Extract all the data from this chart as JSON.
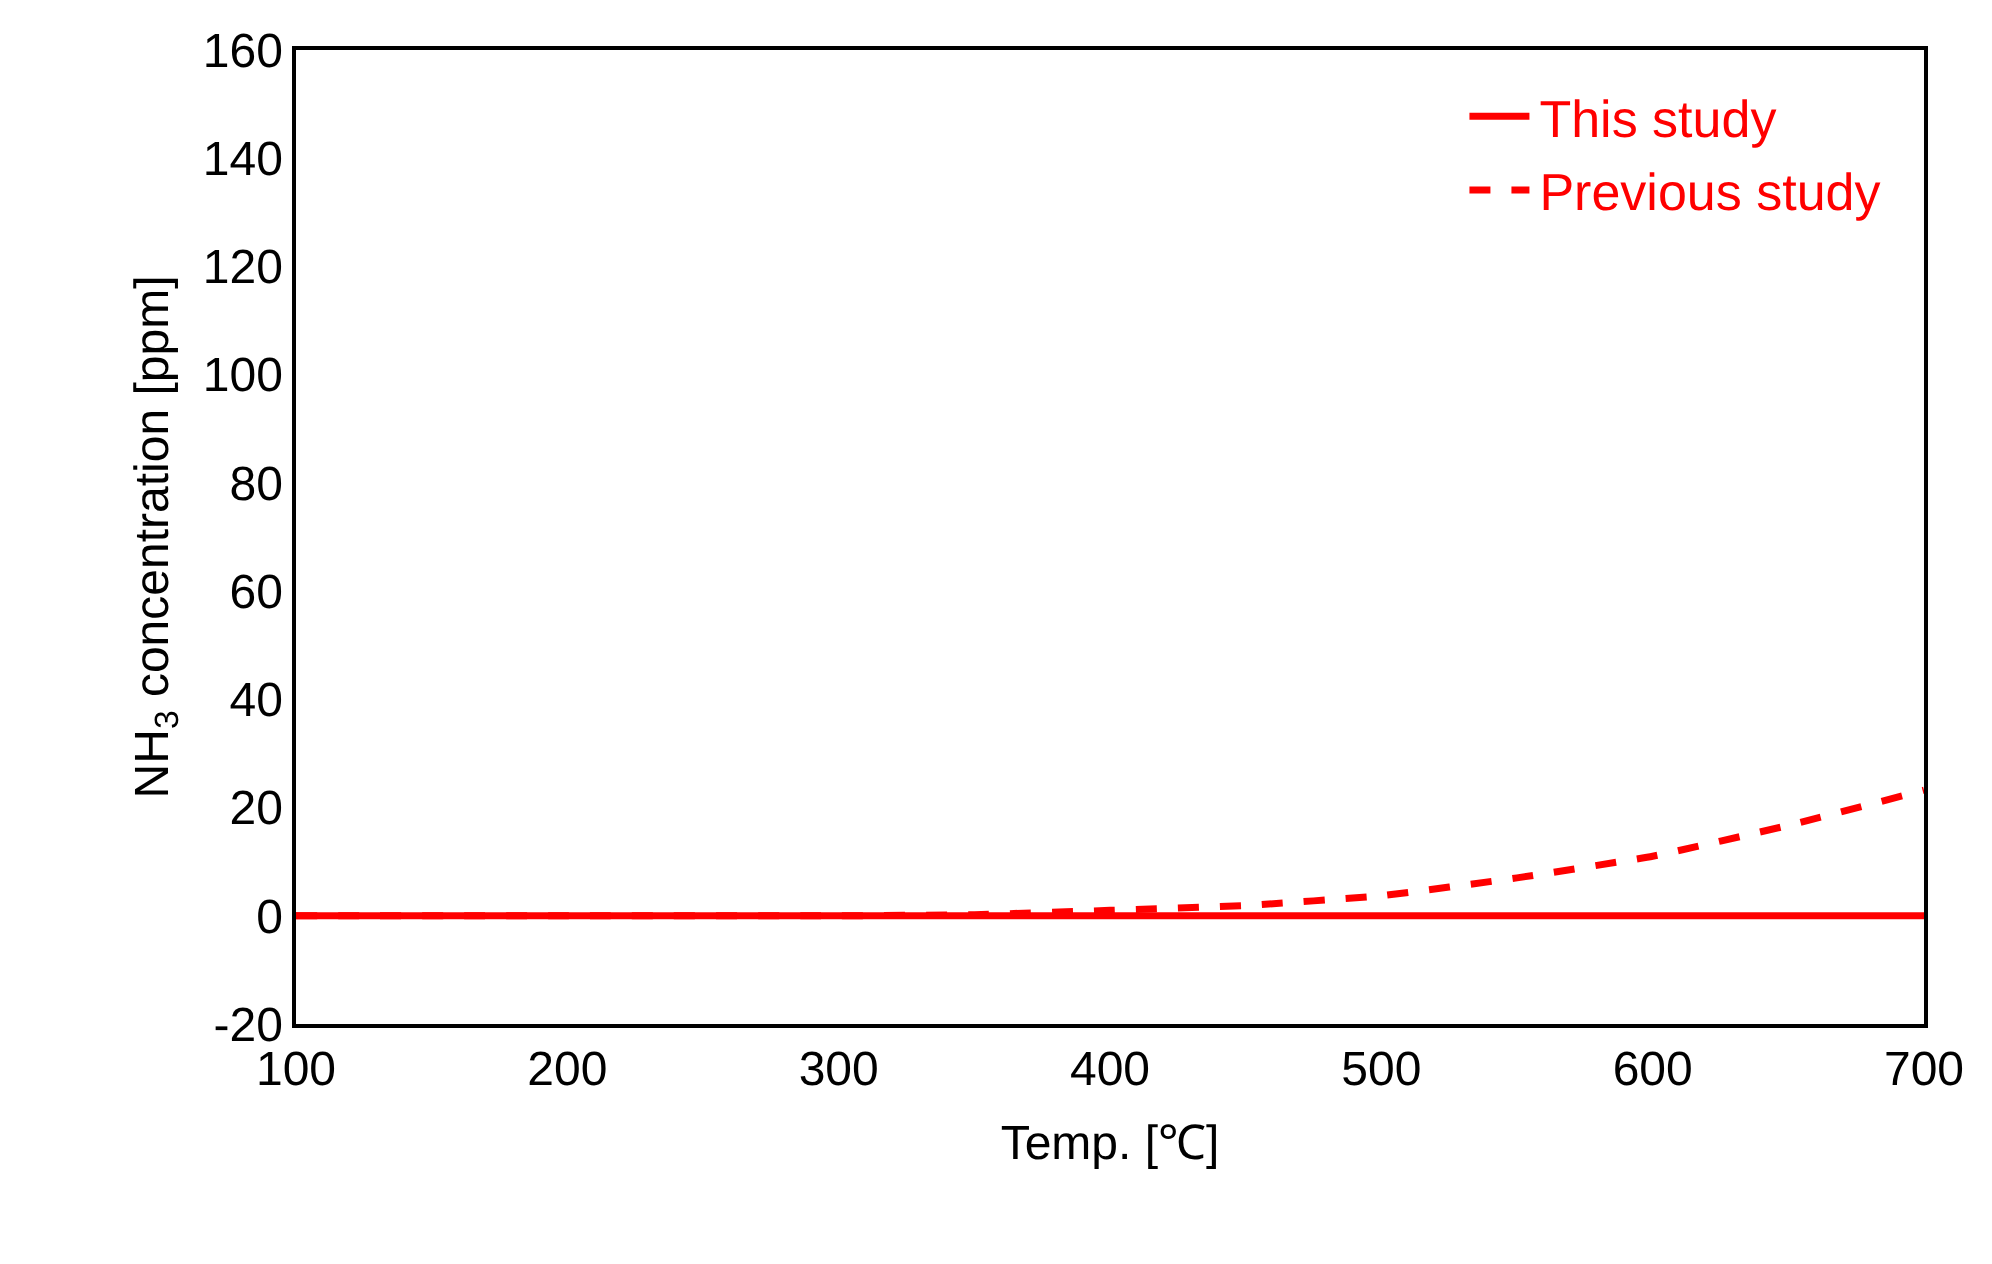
{
  "chart_data": {
    "type": "line",
    "xlabel": "Temp. [℃]",
    "ylabel": "NH$_{3}$ concentration [ppm]",
    "x": [
      100,
      200,
      300,
      350,
      400,
      450,
      500,
      550,
      600,
      650,
      700
    ],
    "series": [
      {
        "name": "This study",
        "color": "#ff0000",
        "line_style": "solid",
        "values": [
          0,
          0,
          0,
          0,
          0,
          0,
          0,
          0,
          0,
          0,
          0
        ]
      },
      {
        "name": "Previous study",
        "color": "#ff0000",
        "line_style": "dashed",
        "values": [
          0,
          0,
          0,
          0.2,
          1,
          1.9,
          3.7,
          7,
          11,
          16.7,
          23.2
        ]
      }
    ],
    "xlim": [
      100,
      700
    ],
    "xticks": [
      100,
      200,
      300,
      400,
      500,
      600,
      700
    ],
    "ylim": [
      -20,
      160
    ],
    "yticks": [
      -20,
      0,
      20,
      40,
      60,
      80,
      100,
      120,
      140,
      160
    ],
    "legend": "top right",
    "marker": "none"
  }
}
